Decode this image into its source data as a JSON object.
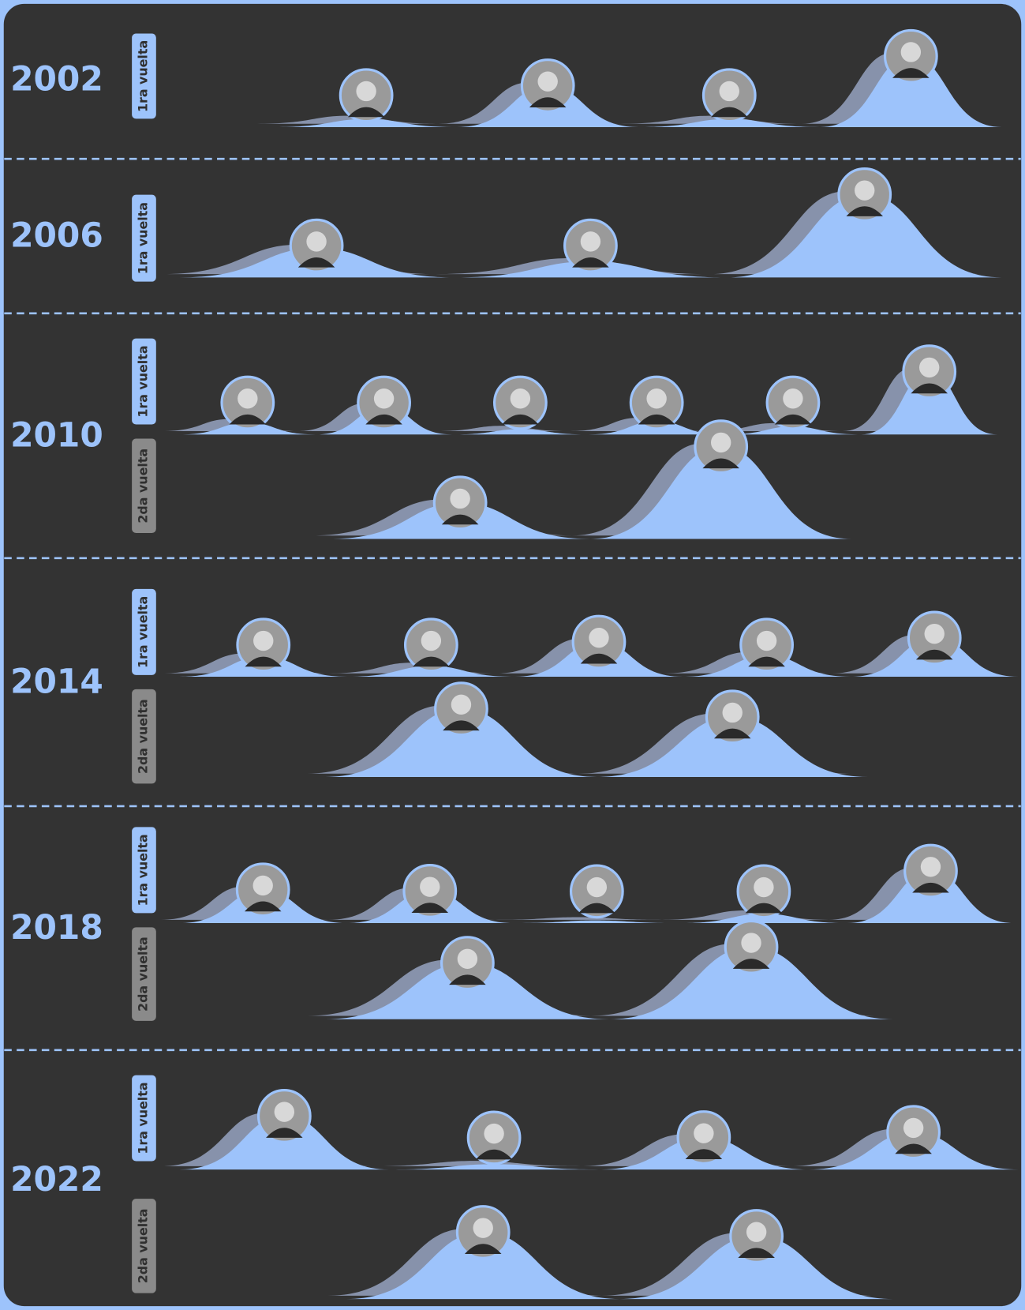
{
  "sections": [
    {
      "year": "2002",
      "rounds": [
        {
          "label": "1ra vuelta",
          "values": [
            6,
            31,
            6,
            53
          ]
        }
      ]
    },
    {
      "year": "2006",
      "rounds": [
        {
          "label": "1ra vuelta",
          "values": [
            22,
            12,
            62
          ]
        }
      ]
    },
    {
      "year": "2010",
      "rounds": [
        {
          "label": "1ra vuelta",
          "values": [
            9,
            21,
            4,
            10,
            6,
            47
          ]
        },
        {
          "label": "2da vuelta",
          "values": [
            27,
            69
          ]
        }
      ]
    },
    {
      "year": "2014",
      "rounds": [
        {
          "label": "1ra vuelta",
          "values": [
            15,
            8,
            26,
            16,
            29
          ]
        },
        {
          "label": "2da vuelta",
          "values": [
            51,
            45
          ]
        }
      ]
    },
    {
      "year": "2018",
      "rounds": [
        {
          "label": "1ra vuelta",
          "values": [
            25,
            24,
            2,
            7,
            39
          ]
        },
        {
          "label": "2da vuelta",
          "values": [
            42,
            54
          ]
        }
      ]
    },
    {
      "year": "2022",
      "rounds": [
        {
          "label": "1ra vuelta",
          "values": [
            40,
            4,
            24,
            28
          ]
        },
        {
          "label": "2da vuelta",
          "values": [
            50,
            47
          ]
        }
      ]
    }
  ]
}
